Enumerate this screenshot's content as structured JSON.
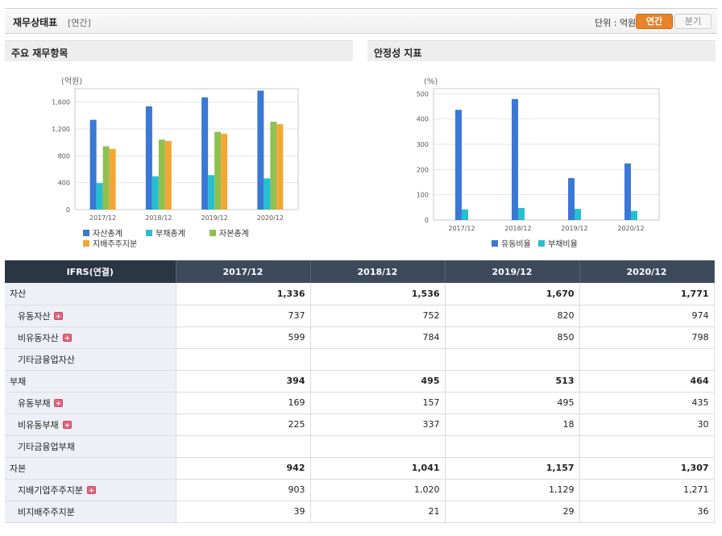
{
  "header": {
    "title": "재무상태표",
    "period_tag": "[연간]",
    "unit_label": "단위 : 억원",
    "toggle_annual": "연간",
    "toggle_quarter": "분기"
  },
  "panels": {
    "left_title": "주요 재무항목",
    "right_title": "안정성 지표"
  },
  "chart_data": [
    {
      "type": "bar",
      "ylabel": "(억원)",
      "categories": [
        "2017/12",
        "2018/12",
        "2019/12",
        "2020/12"
      ],
      "ylim": [
        0,
        1800
      ],
      "yticks": [
        "0",
        "400",
        "800",
        "1,200",
        "1,600"
      ],
      "ytick_values": [
        0,
        400,
        800,
        1200,
        1600
      ],
      "grid": true,
      "legend_position": "bottom",
      "series": [
        {
          "name": "자산총계",
          "color": "#3a78d6",
          "values": [
            1336,
            1536,
            1670,
            1771
          ]
        },
        {
          "name": "부채총계",
          "color": "#27bfcf",
          "values": [
            394,
            495,
            513,
            464
          ]
        },
        {
          "name": "자본총계",
          "color": "#8fc050",
          "values": [
            942,
            1041,
            1157,
            1307
          ]
        },
        {
          "name": "지배주주지분",
          "color": "#f4a635",
          "values": [
            903,
            1020,
            1129,
            1271
          ]
        }
      ]
    },
    {
      "type": "bar",
      "ylabel": "(%)",
      "categories": [
        "2017/12",
        "2018/12",
        "2019/12",
        "2020/12"
      ],
      "ylim": [
        0,
        520
      ],
      "yticks": [
        "0",
        "100",
        "200",
        "300",
        "400",
        "500"
      ],
      "ytick_values": [
        0,
        100,
        200,
        300,
        400,
        500
      ],
      "grid": true,
      "legend_position": "bottom",
      "series": [
        {
          "name": "유동비율",
          "color": "#3a78d6",
          "values": [
            436,
            479,
            166,
            224
          ]
        },
        {
          "name": "부채비율",
          "color": "#27bfcf",
          "values": [
            42,
            48,
            44,
            36
          ]
        }
      ]
    }
  ],
  "table": {
    "header_label": "IFRS(연결)",
    "columns": [
      "2017/12",
      "2018/12",
      "2019/12",
      "2020/12"
    ],
    "rows": [
      {
        "label": "자산",
        "major": true,
        "expand": false,
        "values": [
          "1,336",
          "1,536",
          "1,670",
          "1,771"
        ]
      },
      {
        "label": "유동자산",
        "major": false,
        "expand": true,
        "values": [
          "737",
          "752",
          "820",
          "974"
        ]
      },
      {
        "label": "비유동자산",
        "major": false,
        "expand": true,
        "values": [
          "599",
          "784",
          "850",
          "798"
        ]
      },
      {
        "label": "기타금융업자산",
        "major": false,
        "expand": false,
        "values": [
          "",
          "",
          "",
          ""
        ]
      },
      {
        "label": "부채",
        "major": true,
        "expand": false,
        "values": [
          "394",
          "495",
          "513",
          "464"
        ]
      },
      {
        "label": "유동부채",
        "major": false,
        "expand": true,
        "values": [
          "169",
          "157",
          "495",
          "435"
        ]
      },
      {
        "label": "비유동부채",
        "major": false,
        "expand": true,
        "values": [
          "225",
          "337",
          "18",
          "30"
        ]
      },
      {
        "label": "기타금융업부채",
        "major": false,
        "expand": false,
        "values": [
          "",
          "",
          "",
          ""
        ]
      },
      {
        "label": "자본",
        "major": true,
        "expand": false,
        "values": [
          "942",
          "1,041",
          "1,157",
          "1,307"
        ]
      },
      {
        "label": "지배기업주주지분",
        "major": false,
        "expand": true,
        "values": [
          "903",
          "1,020",
          "1,129",
          "1,271"
        ]
      },
      {
        "label": "비지배주주지분",
        "major": false,
        "expand": false,
        "values": [
          "39",
          "21",
          "29",
          "36"
        ]
      }
    ]
  }
}
